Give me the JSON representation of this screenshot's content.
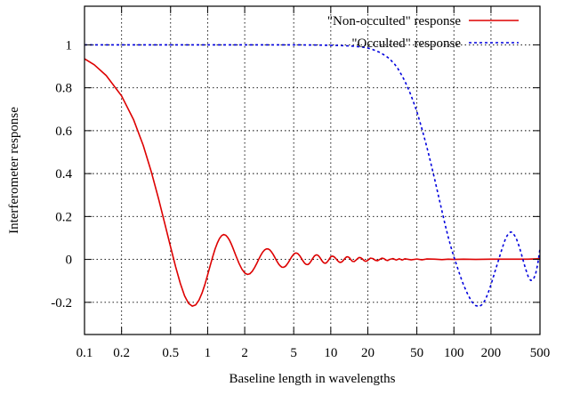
{
  "chart_data": {
    "type": "line",
    "x_scale": "log",
    "xlim": [
      0.1,
      500
    ],
    "ylim": [
      -0.35,
      1.18
    ],
    "grid": "dotted",
    "legend_placement": "top-right",
    "xlabel": "Baseline length in wavelengths",
    "ylabel": "Interferometer response",
    "x_ticks": [
      {
        "value": 0.1,
        "label": "0.1"
      },
      {
        "value": 0.2,
        "label": "0.2"
      },
      {
        "value": 0.5,
        "label": "0.5"
      },
      {
        "value": 1,
        "label": "1"
      },
      {
        "value": 2,
        "label": "2"
      },
      {
        "value": 5,
        "label": "5"
      },
      {
        "value": 10,
        "label": "10"
      },
      {
        "value": 20,
        "label": "20"
      },
      {
        "value": 50,
        "label": "50"
      },
      {
        "value": 100,
        "label": "100"
      },
      {
        "value": 200,
        "label": "200"
      },
      {
        "value": 500,
        "label": "500"
      }
    ],
    "y_ticks": [
      {
        "value": -0.2,
        "label": "-0.2"
      },
      {
        "value": 0,
        "label": "0"
      },
      {
        "value": 0.2,
        "label": "0.2"
      },
      {
        "value": 0.4,
        "label": "0.4"
      },
      {
        "value": 0.6,
        "label": "0.6"
      },
      {
        "value": 0.8,
        "label": "0.8"
      },
      {
        "value": 1,
        "label": "1"
      }
    ],
    "series": [
      {
        "name": "\"Non-occulted\" response",
        "color": "#dd0000",
        "dash": "solid",
        "points": [
          [
            0.1,
            0.935
          ],
          [
            0.12,
            0.907
          ],
          [
            0.15,
            0.857
          ],
          [
            0.2,
            0.762
          ],
          [
            0.25,
            0.652
          ],
          [
            0.3,
            0.531
          ],
          [
            0.35,
            0.405
          ],
          [
            0.4,
            0.281
          ],
          [
            0.45,
            0.164
          ],
          [
            0.5,
            0.058
          ],
          [
            0.55,
            -0.035
          ],
          [
            0.6,
            -0.112
          ],
          [
            0.65,
            -0.17
          ],
          [
            0.7,
            -0.205
          ],
          [
            0.75,
            -0.218
          ],
          [
            0.8,
            -0.212
          ],
          [
            0.85,
            -0.19
          ],
          [
            0.9,
            -0.157
          ],
          [
            0.95,
            -0.117
          ],
          [
            1.0,
            -0.072
          ],
          [
            1.05,
            -0.028
          ],
          [
            1.1,
            0.013
          ],
          [
            1.15,
            0.049
          ],
          [
            1.2,
            0.077
          ],
          [
            1.25,
            0.098
          ],
          [
            1.3,
            0.111
          ],
          [
            1.35,
            0.116
          ],
          [
            1.4,
            0.113
          ],
          [
            1.45,
            0.104
          ],
          [
            1.5,
            0.091
          ],
          [
            1.55,
            0.074
          ],
          [
            1.6,
            0.055
          ],
          [
            1.7,
            0.016
          ],
          [
            1.8,
            -0.019
          ],
          [
            1.9,
            -0.046
          ],
          [
            2.0,
            -0.063
          ],
          [
            2.1,
            -0.07
          ],
          [
            2.2,
            -0.067
          ],
          [
            2.3,
            -0.056
          ],
          [
            2.4,
            -0.039
          ],
          [
            2.5,
            -0.02
          ],
          [
            2.6,
            0.001
          ],
          [
            2.7,
            0.019
          ],
          [
            2.8,
            0.034
          ],
          [
            2.9,
            0.044
          ],
          [
            3.0,
            0.049
          ],
          [
            3.1,
            0.049
          ],
          [
            3.2,
            0.044
          ],
          [
            3.3,
            0.035
          ],
          [
            3.4,
            0.024
          ],
          [
            3.5,
            0.011
          ],
          [
            3.6,
            -0.002
          ],
          [
            3.7,
            -0.014
          ],
          [
            3.8,
            -0.024
          ],
          [
            3.9,
            -0.031
          ],
          [
            4.0,
            -0.036
          ],
          [
            4.1,
            -0.037
          ],
          [
            4.2,
            -0.035
          ],
          [
            4.3,
            -0.031
          ],
          [
            4.4,
            -0.024
          ],
          [
            4.5,
            -0.016
          ],
          [
            4.6,
            -0.007
          ],
          [
            4.7,
            0.002
          ],
          [
            4.8,
            0.011
          ],
          [
            4.9,
            0.018
          ],
          [
            5.0,
            0.024
          ],
          [
            5.1,
            0.028
          ],
          [
            5.2,
            0.03
          ],
          [
            5.3,
            0.029
          ],
          [
            5.4,
            0.027
          ],
          [
            5.5,
            0.022
          ],
          [
            5.6,
            0.017
          ],
          [
            5.7,
            0.01
          ],
          [
            5.8,
            0.003
          ],
          [
            5.9,
            -0.004
          ],
          [
            6.0,
            -0.01
          ],
          [
            6.1,
            -0.016
          ],
          [
            6.2,
            -0.02
          ],
          [
            6.3,
            -0.023
          ],
          [
            6.4,
            -0.024
          ],
          [
            6.5,
            -0.024
          ],
          [
            6.6,
            -0.022
          ],
          [
            6.7,
            -0.019
          ],
          [
            6.8,
            -0.014
          ],
          [
            6.9,
            -0.009
          ],
          [
            7.0,
            -0.003
          ],
          [
            7.1,
            0.003
          ],
          [
            7.2,
            0.008
          ],
          [
            7.3,
            0.013
          ],
          [
            7.4,
            0.017
          ],
          [
            7.5,
            0.019
          ],
          [
            7.6,
            0.021
          ],
          [
            7.7,
            0.021
          ],
          [
            7.8,
            0.02
          ],
          [
            7.9,
            0.018
          ],
          [
            8.0,
            0.015
          ],
          [
            8.1,
            0.011
          ],
          [
            8.2,
            0.007
          ],
          [
            8.3,
            0.002
          ],
          [
            8.4,
            -0.003
          ],
          [
            8.5,
            -0.007
          ],
          [
            8.6,
            -0.011
          ],
          [
            8.7,
            -0.014
          ],
          [
            8.8,
            -0.016
          ],
          [
            8.9,
            -0.017
          ],
          [
            9.0,
            -0.018
          ],
          [
            9.1,
            -0.017
          ],
          [
            9.2,
            -0.016
          ],
          [
            9.3,
            -0.013
          ],
          [
            9.4,
            -0.01
          ],
          [
            9.5,
            -0.007
          ],
          [
            9.6,
            -0.003
          ],
          [
            9.7,
            0.001
          ],
          [
            9.8,
            0.005
          ],
          [
            9.9,
            0.009
          ],
          [
            10.0,
            0.012
          ],
          [
            10.25,
            0.015
          ],
          [
            10.5,
            0.014
          ],
          [
            10.75,
            0.01
          ],
          [
            11.0,
            0.004
          ],
          [
            11.25,
            -0.003
          ],
          [
            11.5,
            -0.009
          ],
          [
            11.75,
            -0.013
          ],
          [
            12.0,
            -0.014
          ],
          [
            12.25,
            -0.012
          ],
          [
            12.5,
            -0.008
          ],
          [
            12.75,
            -0.002
          ],
          [
            13.0,
            0.004
          ],
          [
            13.25,
            0.009
          ],
          [
            13.5,
            0.012
          ],
          [
            13.75,
            0.012
          ],
          [
            14.0,
            0.01
          ],
          [
            14.25,
            0.006
          ],
          [
            14.5,
            0.0
          ],
          [
            14.75,
            -0.005
          ],
          [
            15.0,
            -0.009
          ],
          [
            15.5,
            -0.01
          ],
          [
            16.0,
            -0.004
          ],
          [
            16.5,
            0.004
          ],
          [
            17.0,
            0.009
          ],
          [
            17.5,
            0.008
          ],
          [
            18.0,
            0.003
          ],
          [
            18.5,
            -0.004
          ],
          [
            19.0,
            -0.008
          ],
          [
            19.5,
            -0.008
          ],
          [
            20.0,
            -0.004
          ],
          [
            21.0,
            0.006
          ],
          [
            22.0,
            0.004
          ],
          [
            23.0,
            -0.004
          ],
          [
            24.0,
            -0.006
          ],
          [
            25.0,
            0.0
          ],
          [
            26.0,
            0.006
          ],
          [
            27.0,
            0.004
          ],
          [
            28.0,
            -0.003
          ],
          [
            29.0,
            -0.005
          ],
          [
            30.0,
            0.0
          ],
          [
            32.0,
            0.004
          ],
          [
            34.0,
            -0.003
          ],
          [
            36.0,
            0.003
          ],
          [
            38.0,
            -0.003
          ],
          [
            40.0,
            0.003
          ],
          [
            45.0,
            -0.002
          ],
          [
            50.0,
            0.002
          ],
          [
            55.0,
            -0.002
          ],
          [
            60.0,
            0.002
          ],
          [
            70.0,
            0.001
          ],
          [
            80.0,
            -0.001
          ],
          [
            90.0,
            0.001
          ],
          [
            100.0,
            0.0
          ],
          [
            120.0,
            0.001
          ],
          [
            150.0,
            0.0
          ],
          [
            200.0,
            0.001
          ],
          [
            300.0,
            0.001
          ],
          [
            400.0,
            0.001
          ],
          [
            500.0,
            0.003
          ]
        ]
      },
      {
        "name": "\"Occulted\" response",
        "color": "#0000dd",
        "dash": "dotted",
        "points": [
          [
            0.1,
            1.0
          ],
          [
            0.5,
            1.0
          ],
          [
            1.0,
            1.0
          ],
          [
            2.0,
            1.0
          ],
          [
            5.0,
            1.0
          ],
          [
            8.0,
            0.999
          ],
          [
            10.0,
            0.998
          ],
          [
            12.0,
            0.997
          ],
          [
            15.0,
            0.994
          ],
          [
            18.0,
            0.99
          ],
          [
            20.0,
            0.985
          ],
          [
            22.0,
            0.978
          ],
          [
            25.0,
            0.965
          ],
          [
            28.0,
            0.948
          ],
          [
            30.0,
            0.935
          ],
          [
            33.0,
            0.91
          ],
          [
            35.0,
            0.89
          ],
          [
            38.0,
            0.855
          ],
          [
            40.0,
            0.83
          ],
          [
            43.0,
            0.79
          ],
          [
            45.0,
            0.762
          ],
          [
            48.0,
            0.718
          ],
          [
            50.0,
            0.69
          ],
          [
            53.0,
            0.64
          ],
          [
            56.0,
            0.592
          ],
          [
            60.0,
            0.528
          ],
          [
            63.0,
            0.48
          ],
          [
            66.0,
            0.432
          ],
          [
            70.0,
            0.37
          ],
          [
            75.0,
            0.295
          ],
          [
            80.0,
            0.225
          ],
          [
            85.0,
            0.16
          ],
          [
            90.0,
            0.103
          ],
          [
            95.0,
            0.054
          ],
          [
            100.0,
            0.012
          ],
          [
            105.0,
            -0.025
          ],
          [
            110.0,
            -0.06
          ],
          [
            115.0,
            -0.092
          ],
          [
            120.0,
            -0.12
          ],
          [
            130.0,
            -0.165
          ],
          [
            140.0,
            -0.198
          ],
          [
            150.0,
            -0.215
          ],
          [
            160.0,
            -0.22
          ],
          [
            170.0,
            -0.21
          ],
          [
            180.0,
            -0.188
          ],
          [
            190.0,
            -0.155
          ],
          [
            200.0,
            -0.118
          ],
          [
            210.0,
            -0.078
          ],
          [
            220.0,
            -0.04
          ],
          [
            230.0,
            -0.004
          ],
          [
            240.0,
            0.03
          ],
          [
            250.0,
            0.062
          ],
          [
            260.0,
            0.09
          ],
          [
            270.0,
            0.11
          ],
          [
            280.0,
            0.123
          ],
          [
            290.0,
            0.128
          ],
          [
            300.0,
            0.125
          ],
          [
            320.0,
            0.1
          ],
          [
            340.0,
            0.058
          ],
          [
            360.0,
            0.008
          ],
          [
            380.0,
            -0.04
          ],
          [
            400.0,
            -0.078
          ],
          [
            420.0,
            -0.098
          ],
          [
            440.0,
            -0.095
          ],
          [
            460.0,
            -0.07
          ],
          [
            480.0,
            -0.02
          ],
          [
            500.0,
            0.05
          ]
        ]
      }
    ]
  }
}
